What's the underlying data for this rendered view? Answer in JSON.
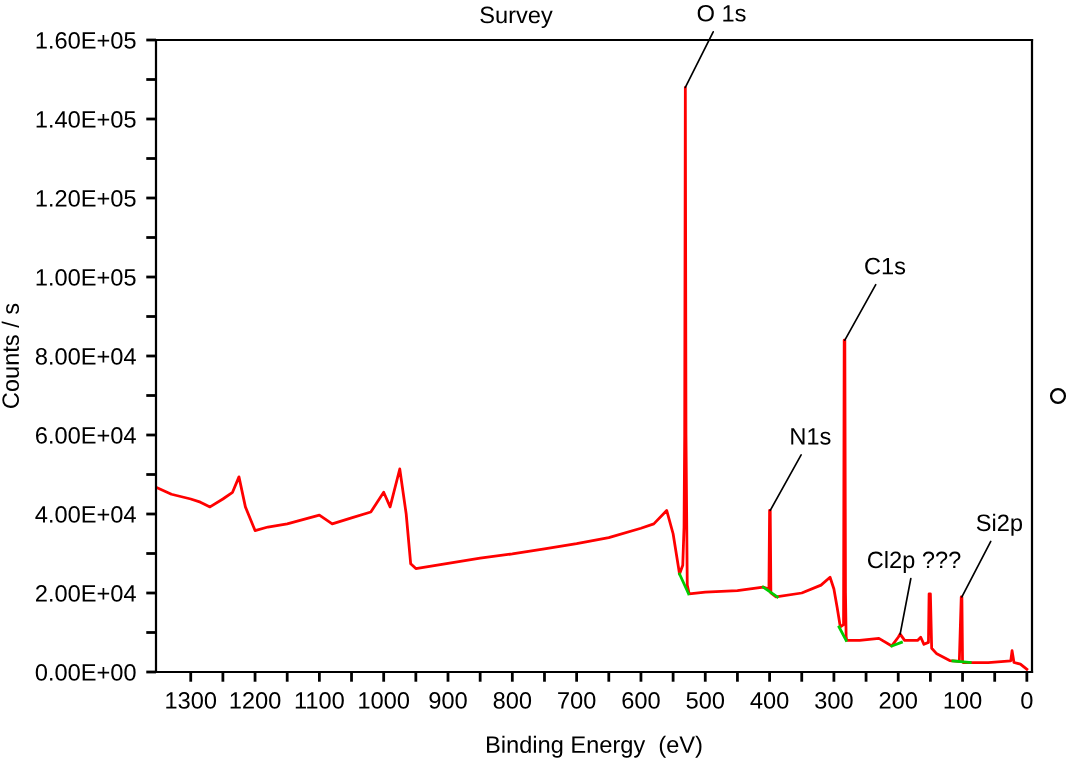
{
  "chart_data": {
    "type": "line",
    "title": "Survey",
    "xlabel": "Binding Energy  (eV)",
    "ylabel": "Counts / s",
    "xlim": [
      1354,
      -8
    ],
    "xticks": [
      1300,
      {
        "value": 1250,
        "label": null
      },
      1200,
      {
        "value": 1150,
        "label": null
      },
      1100,
      {
        "value": 1050,
        "label": null
      },
      1000,
      {
        "value": 950,
        "label": null
      },
      900,
      {
        "value": 850,
        "label": null
      },
      800,
      {
        "value": 750,
        "label": null
      },
      700,
      {
        "value": 650,
        "label": null
      },
      600,
      {
        "value": 550,
        "label": null
      },
      500,
      {
        "value": 450,
        "label": null
      },
      400,
      {
        "value": 350,
        "label": null
      },
      300,
      {
        "value": 250,
        "label": null
      },
      200,
      {
        "value": 150,
        "label": null
      },
      100,
      {
        "value": 50,
        "label": null
      },
      0
    ],
    "ylim": [
      0,
      160000
    ],
    "yticks": [
      {
        "value": 0,
        "label": "0.00E+00"
      },
      {
        "value": 10000,
        "label": null
      },
      {
        "value": 20000,
        "label": "2.00E+04"
      },
      {
        "value": 30000,
        "label": null
      },
      {
        "value": 40000,
        "label": "4.00E+04"
      },
      {
        "value": 50000,
        "label": null
      },
      {
        "value": 60000,
        "label": "6.00E+04"
      },
      {
        "value": 70000,
        "label": null
      },
      {
        "value": 80000,
        "label": "8.00E+04"
      },
      {
        "value": 90000,
        "label": null
      },
      {
        "value": 100000,
        "label": "1.00E+05"
      },
      {
        "value": 110000,
        "label": null
      },
      {
        "value": 120000,
        "label": "1.20E+05"
      },
      {
        "value": 130000,
        "label": null
      },
      {
        "value": 140000,
        "label": "1.40E+05"
      },
      {
        "value": 150000,
        "label": null
      },
      {
        "value": 160000,
        "label": "1.60E+05"
      }
    ],
    "grid": false,
    "legend": false,
    "marker": "none",
    "line_style": "solid",
    "series": [
      {
        "color": "#ff0000",
        "x": [
          1354,
          1330,
          1300,
          1285,
          1270,
          1250,
          1235,
          1225,
          1215,
          1200,
          1180,
          1150,
          1100,
          1080,
          1050,
          1020,
          1000,
          990,
          975,
          965,
          958,
          950,
          900,
          850,
          800,
          750,
          700,
          650,
          600,
          580,
          560,
          550,
          540,
          535,
          533,
          532,
          531,
          530,
          528,
          525,
          500,
          450,
          410,
          401,
          400,
          399,
          398,
          390,
          350,
          320,
          306,
          300,
          295,
          290,
          285,
          284,
          283,
          282,
          281,
          280,
          260,
          230,
          210,
          200,
          197,
          190,
          170,
          165,
          160,
          153,
          152,
          150,
          148,
          140,
          120,
          105,
          102,
          101,
          100,
          99,
          90,
          60,
          40,
          25,
          23,
          20,
          10,
          0
        ],
        "values": [
          46800,
          45000,
          43800,
          43000,
          41800,
          43800,
          45500,
          49400,
          41800,
          35800,
          36700,
          37500,
          39700,
          37500,
          39000,
          40500,
          45500,
          41800,
          51400,
          40000,
          27400,
          26200,
          27500,
          28800,
          29900,
          31200,
          32500,
          34000,
          36400,
          37500,
          40900,
          35000,
          24800,
          27000,
          36700,
          60000,
          148000,
          60000,
          22000,
          19800,
          20200,
          20600,
          21500,
          21000,
          40900,
          40900,
          20000,
          19000,
          20000,
          22000,
          24000,
          21000,
          16400,
          11400,
          12000,
          84000,
          84000,
          20000,
          9000,
          8000,
          8000,
          8500,
          6600,
          8800,
          9600,
          8000,
          8000,
          8800,
          7000,
          7500,
          19800,
          19800,
          6000,
          4600,
          2900,
          2700,
          19000,
          19000,
          2700,
          2400,
          2400,
          2400,
          2600,
          2800,
          5400,
          2400,
          2000,
          700
        ]
      },
      {
        "color": "#00cc00",
        "x": [
          540,
          526,
          525,
          410,
          388,
          387,
          292,
          281,
          280,
          210,
          195,
          194,
          115,
          88
        ],
        "values": [
          24800,
          19800,
          null,
          21500,
          19000,
          null,
          11400,
          8000,
          null,
          6600,
          7500,
          null,
          2800,
          2400
        ]
      }
    ],
    "annotations": [
      {
        "text": "O 1s",
        "x": 531,
        "y": 148000
      },
      {
        "text": "C1s",
        "x": 283,
        "y": 84000
      },
      {
        "text": "N1s",
        "x": 399,
        "y": 40900
      },
      {
        "text": "Cl2p ???",
        "x": 197,
        "y": 9600
      },
      {
        "text": "Si2p",
        "x": 101,
        "y": 19000
      }
    ]
  }
}
